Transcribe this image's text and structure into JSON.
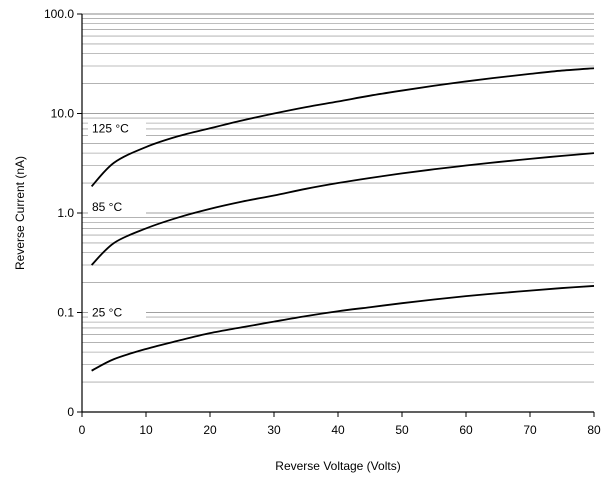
{
  "chart_data": {
    "type": "line",
    "title": "",
    "xlabel": "Reverse Voltage (Volts)",
    "ylabel": "Reverse Current (nA)",
    "x_scale": "linear",
    "y_scale": "log",
    "xlim": [
      0,
      80
    ],
    "ylim": [
      0.01,
      100
    ],
    "x_ticks": [
      0,
      10,
      20,
      30,
      40,
      50,
      60,
      70,
      80
    ],
    "x_tick_labels": [
      "0",
      "10",
      "20",
      "30",
      "40",
      "50",
      "60",
      "70",
      "80"
    ],
    "y_ticks": [
      0.01,
      0.1,
      1,
      10,
      100
    ],
    "y_tick_labels": [
      "0",
      "0.1",
      "1.0",
      "10.0",
      "100.0"
    ],
    "grid": "horizontal minor and major lines",
    "series": [
      {
        "name": "125 °C",
        "x": [
          1.5,
          5,
          10,
          15,
          20,
          25,
          30,
          35,
          40,
          45,
          50,
          55,
          60,
          65,
          70,
          75,
          80
        ],
        "y": [
          1.85,
          3.2,
          4.6,
          5.9,
          7.1,
          8.5,
          10.0,
          11.6,
          13.2,
          15.1,
          17.0,
          19.0,
          21.0,
          23.0,
          25.0,
          27.0,
          28.5
        ]
      },
      {
        "name": "85 °C",
        "x": [
          1.5,
          5,
          10,
          15,
          20,
          25,
          30,
          35,
          40,
          45,
          50,
          55,
          60,
          65,
          70,
          75,
          80
        ],
        "y": [
          0.3,
          0.5,
          0.7,
          0.9,
          1.1,
          1.3,
          1.5,
          1.75,
          2.0,
          2.25,
          2.5,
          2.75,
          3.0,
          3.25,
          3.5,
          3.75,
          4.0
        ]
      },
      {
        "name": "25 °C",
        "x": [
          1.5,
          5,
          10,
          15,
          20,
          25,
          30,
          35,
          40,
          45,
          50,
          55,
          60,
          65,
          70,
          75,
          80
        ],
        "y": [
          0.026,
          0.034,
          0.043,
          0.052,
          0.062,
          0.071,
          0.081,
          0.092,
          0.103,
          0.113,
          0.124,
          0.135,
          0.146,
          0.156,
          0.166,
          0.176,
          0.185
        ]
      }
    ]
  }
}
